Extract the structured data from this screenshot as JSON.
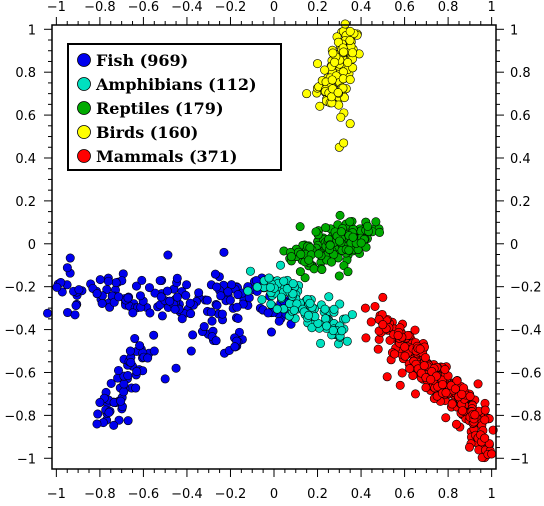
{
  "chart_data": {
    "type": "scatter",
    "title": "",
    "xlabel": "",
    "ylabel": "",
    "xlim": [
      -1.02,
      1.02
    ],
    "ylim": [
      -1.05,
      1.02
    ],
    "grid": false,
    "legend_position": "top-left",
    "x_ticks_major": [
      -1,
      -0.8,
      -0.6,
      -0.4,
      -0.2,
      0,
      0.2,
      0.4,
      0.6,
      0.8,
      1
    ],
    "x_tick_labels": [
      "−1",
      "−0.8",
      "−0.6",
      "−0.4",
      "−0.2",
      "0",
      "0.2",
      "0.4",
      "0.6",
      "0.8",
      "1"
    ],
    "y_ticks_major": [
      -1,
      -0.8,
      -0.6,
      -0.4,
      -0.2,
      0,
      0.2,
      0.4,
      0.6,
      0.8,
      1
    ],
    "y_tick_labels": [
      "−1",
      "−0.8",
      "−0.6",
      "−0.4",
      "−0.2",
      "0",
      "0.2",
      "0.4",
      "0.6",
      "0.8",
      "1"
    ],
    "series": [
      {
        "name": "Fish (969)",
        "color": "#0000ee",
        "clusters": [
          {
            "path": [
              [
                -1.0,
                -0.19
              ],
              [
                -0.9,
                -0.2
              ],
              [
                -0.8,
                -0.22
              ],
              [
                -0.7,
                -0.24
              ],
              [
                -0.6,
                -0.23
              ],
              [
                -0.5,
                -0.26
              ],
              [
                -0.4,
                -0.27
              ],
              [
                -0.3,
                -0.26
              ],
              [
                -0.2,
                -0.26
              ],
              [
                -0.1,
                -0.24
              ],
              [
                0.0,
                -0.28
              ],
              [
                0.08,
                -0.33
              ]
            ],
            "spread": [
              0.035,
              0.055
            ],
            "count": 170
          },
          {
            "path": [
              [
                -0.58,
                -0.47
              ],
              [
                -0.62,
                -0.55
              ],
              [
                -0.66,
                -0.62
              ],
              [
                -0.69,
                -0.7
              ],
              [
                -0.72,
                -0.77
              ],
              [
                -0.77,
                -0.83
              ]
            ],
            "spread": [
              0.028,
              0.035
            ],
            "count": 55
          },
          {
            "path": [
              [
                -0.35,
                -0.34
              ],
              [
                -0.3,
                -0.42
              ],
              [
                -0.22,
                -0.45
              ],
              [
                -0.15,
                -0.44
              ]
            ],
            "spread": [
              0.03,
              0.03
            ],
            "count": 18
          }
        ],
        "points": [
          [
            -0.12,
            -0.2
          ],
          [
            -0.23,
            -0.04
          ],
          [
            -0.18,
            -0.48
          ],
          [
            -0.38,
            -0.5
          ],
          [
            -0.45,
            -0.58
          ],
          [
            -0.78,
            -0.72
          ],
          [
            -0.8,
            -0.74
          ],
          [
            -0.55,
            -0.5
          ],
          [
            -0.66,
            -0.5
          ],
          [
            -0.5,
            -0.63
          ]
        ]
      },
      {
        "name": "Amphibians (112)",
        "color": "#00e0c0",
        "clusters": [
          {
            "path": [
              [
                -0.05,
                -0.16
              ],
              [
                0.05,
                -0.23
              ],
              [
                0.13,
                -0.3
              ],
              [
                0.22,
                -0.36
              ],
              [
                0.3,
                -0.41
              ]
            ],
            "spread": [
              0.035,
              0.035
            ],
            "count": 100
          }
        ],
        "points": [
          [
            0.33,
            -0.35
          ],
          [
            0.36,
            -0.33
          ],
          [
            -0.12,
            -0.22
          ],
          [
            0.03,
            -0.1
          ]
        ]
      },
      {
        "name": "Reptiles (179)",
        "color": "#00aa00",
        "clusters": [
          {
            "path": [
              [
                0.12,
                -0.08
              ],
              [
                0.22,
                -0.03
              ],
              [
                0.3,
                0.02
              ],
              [
                0.4,
                0.06
              ]
            ],
            "spread": [
              0.045,
              0.04
            ],
            "count": 160
          }
        ],
        "points": [
          [
            0.12,
            0.08
          ],
          [
            0.08,
            -0.06
          ],
          [
            0.3,
            -0.15
          ],
          [
            0.34,
            -0.13
          ],
          [
            0.22,
            -0.12
          ]
        ]
      },
      {
        "name": "Birds (160)",
        "color": "#ffff00",
        "clusters": [
          {
            "path": [
              [
                0.34,
                0.97
              ],
              [
                0.32,
                0.9
              ],
              [
                0.3,
                0.82
              ],
              [
                0.27,
                0.74
              ],
              [
                0.26,
                0.66
              ]
            ],
            "spread": [
              0.032,
              0.03
            ],
            "count": 140
          }
        ],
        "points": [
          [
            0.3,
            0.45
          ],
          [
            0.32,
            0.47
          ],
          [
            0.35,
            0.56
          ],
          [
            0.15,
            0.7
          ],
          [
            0.2,
            0.84
          ],
          [
            0.35,
            0.99
          ]
        ]
      },
      {
        "name": "Mammals (371)",
        "color": "#ff0000",
        "clusters": [
          {
            "path": [
              [
                0.5,
                -0.35
              ],
              [
                0.6,
                -0.48
              ],
              [
                0.7,
                -0.6
              ],
              [
                0.8,
                -0.68
              ],
              [
                0.88,
                -0.75
              ],
              [
                0.95,
                -0.83
              ]
            ],
            "spread": [
              0.035,
              0.035
            ],
            "count": 290
          },
          {
            "path": [
              [
                0.92,
                -0.86
              ],
              [
                0.95,
                -0.92
              ],
              [
                0.98,
                -0.98
              ]
            ],
            "spread": [
              0.018,
              0.025
            ],
            "count": 20
          }
        ],
        "points": [
          [
            0.5,
            -0.25
          ],
          [
            0.42,
            -0.3
          ],
          [
            0.58,
            -0.66
          ],
          [
            0.52,
            -0.62
          ],
          [
            0.65,
            -0.7
          ],
          [
            1.0,
            -0.98
          ]
        ]
      }
    ]
  }
}
